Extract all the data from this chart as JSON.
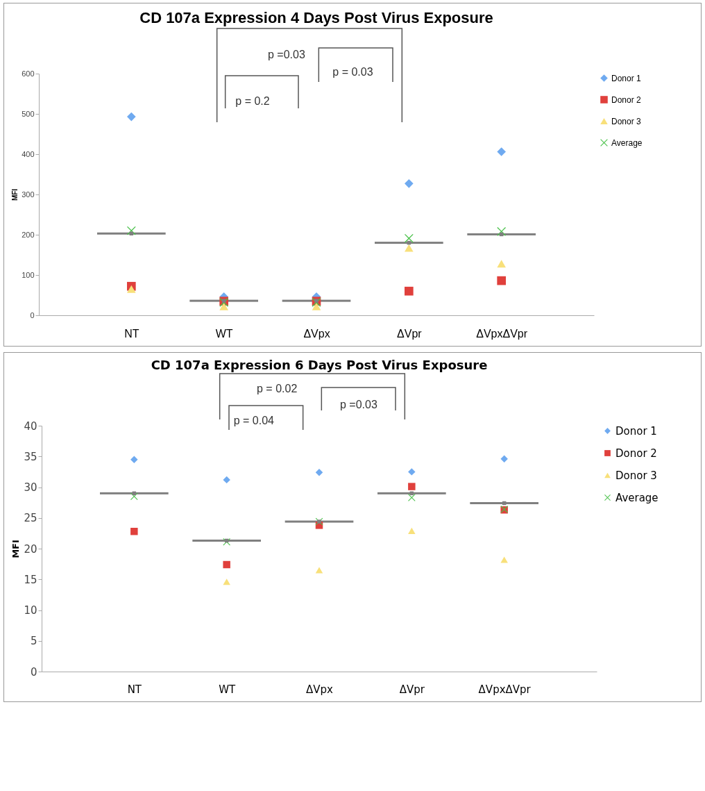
{
  "chart_data": [
    {
      "type": "scatter",
      "title": "CD 107a Expression 4 Days Post Virus Exposure",
      "ylabel": "MFI",
      "categories": [
        "NT",
        "WT",
        "ΔVpx",
        "ΔVpr",
        "ΔVpxΔVpr"
      ],
      "ylim": [
        0,
        600
      ],
      "yticks": [
        0,
        100,
        200,
        300,
        400,
        500,
        600
      ],
      "grid": false,
      "legend": "right",
      "annotations": [
        "p =0.03",
        "p = 0.2",
        "p = 0.03"
      ],
      "series": [
        {
          "type": "scatter",
          "color": "#7f7f7f",
          "values": [
            203,
            36,
            36,
            180,
            201
          ]
        },
        {
          "name": "Donor 1",
          "color": "#6faaf0",
          "marker": "diamond",
          "values": [
            493,
            46,
            46,
            327,
            406
          ]
        },
        {
          "name": "Donor 2",
          "color": "#e0403c",
          "marker": "square",
          "values": [
            72,
            35,
            35,
            60,
            86
          ]
        },
        {
          "name": "Donor 3",
          "color": "#f8e07a",
          "marker": "triangle",
          "values": [
            65,
            22,
            22,
            167,
            128
          ]
        },
        {
          "name": "Average",
          "color": "#4cc24c",
          "marker": "cross",
          "values": [
            210,
            32,
            32,
            191,
            208
          ]
        }
      ]
    },
    {
      "type": "scatter",
      "title": "CD 107a Expression 6 Days Post Virus Exposure",
      "ylabel": "MFI",
      "categories": [
        "NT",
        "WT",
        "ΔVpx",
        "ΔVpr",
        "ΔVpxΔVpr"
      ],
      "ylim": [
        0,
        40
      ],
      "yticks": [
        0,
        5,
        10,
        15,
        20,
        25,
        30,
        35,
        40
      ],
      "grid": false,
      "legend": "right",
      "annotations": [
        "p = 0.02",
        "p = 0.04",
        "p =0.03"
      ],
      "series": [
        {
          "type": "scatter",
          "color": "#7f7f7f",
          "values": [
            29,
            21.3,
            24.4,
            29,
            27.4
          ]
        },
        {
          "name": "Donor 1",
          "color": "#6faaf0",
          "marker": "diamond",
          "values": [
            34.5,
            31.2,
            32.4,
            32.5,
            34.6
          ]
        },
        {
          "name": "Donor 2",
          "color": "#e0403c",
          "marker": "square",
          "values": [
            22.8,
            17.4,
            23.8,
            30.1,
            26.3
          ]
        },
        {
          "name": "Donor 3",
          "color": "#f8e07a",
          "marker": "triangle",
          "values": [
            null,
            14.6,
            16.5,
            22.9,
            18.2
          ]
        },
        {
          "name": "Average",
          "color": "#4cc24c",
          "marker": "cross",
          "values": [
            28.5,
            21.1,
            24.4,
            28.3,
            26.4
          ]
        }
      ]
    }
  ]
}
